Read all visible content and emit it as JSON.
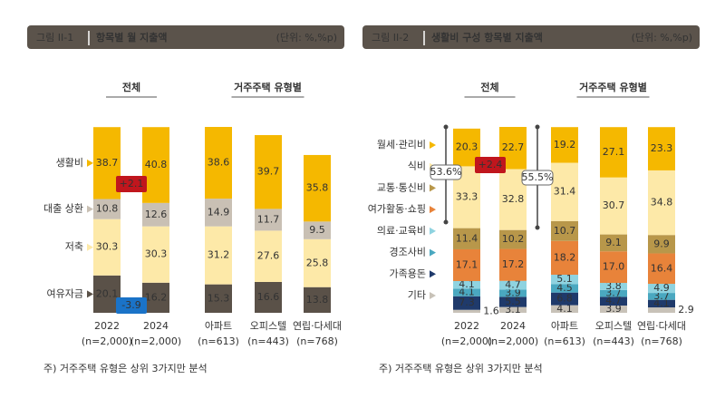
{
  "chart_data": [
    {
      "type": "stacked-bar",
      "figure_label": "그림 II-1",
      "title": "항목별 월 지출액",
      "unit": "(단위: %,%p)",
      "groups": [
        "전체",
        "거주주택 유형별"
      ],
      "categories": [
        "2022",
        "2024",
        "아파트",
        "오피스텔",
        "연립·다세대"
      ],
      "category_notes": [
        "(n=2,000)",
        "(n=2,000)",
        "(n=613)",
        "(n=443)",
        "(n=768)"
      ],
      "series": [
        {
          "name": "여유자금",
          "color": "#5a5148",
          "values": [
            20.1,
            16.2,
            15.3,
            16.6,
            13.8
          ]
        },
        {
          "name": "저축",
          "color": "#fde9a8",
          "values": [
            30.3,
            30.3,
            31.2,
            27.6,
            25.8
          ]
        },
        {
          "name": "대출 상환",
          "color": "#c9c0b4",
          "values": [
            10.8,
            12.6,
            14.9,
            11.7,
            9.5
          ]
        },
        {
          "name": "생활비",
          "color": "#f5b800",
          "values": [
            38.7,
            40.8,
            38.6,
            39.7,
            35.8
          ]
        }
      ],
      "annotations": [
        {
          "text": "+2.1",
          "color": "#c0161d"
        },
        {
          "text": "-3.9",
          "color": "#1a73c8"
        }
      ],
      "note": "주) 거주주택 유형은 상위 3가지만 분석"
    },
    {
      "type": "stacked-bar",
      "figure_label": "그림 II-2",
      "title": "생활비 구성 항목별 지출액",
      "unit": "(단위: %,%p)",
      "groups": [
        "전체",
        "거주주택 유형별"
      ],
      "categories": [
        "2022",
        "2024",
        "아파트",
        "오피스텔",
        "연립·다세대"
      ],
      "category_notes": [
        "(n=2,000)",
        "(n=2,000)",
        "(n=613)",
        "(n=443)",
        "(n=768)"
      ],
      "series": [
        {
          "name": "기타",
          "color": "#c8c2b8",
          "values": [
            1.6,
            3.1,
            4.1,
            3.9,
            2.9
          ]
        },
        {
          "name": "가족용돈",
          "color": "#1f3a6b",
          "values": [
            7.3,
            5.5,
            6.8,
            4.7,
            4.1
          ]
        },
        {
          "name": "경조사비",
          "color": "#4aa8c0",
          "values": [
            4.1,
            3.9,
            4.5,
            3.7,
            3.7
          ]
        },
        {
          "name": "의료·교육비",
          "color": "#8fd3e0",
          "values": [
            4.1,
            4.7,
            5.1,
            3.8,
            4.9
          ]
        },
        {
          "name": "여가활동·쇼핑",
          "color": "#e8833a",
          "values": [
            17.1,
            17.2,
            18.2,
            17.0,
            16.4
          ],
          "value_labels": [
            "17.1",
            "17.2",
            "18.2",
            "17.0",
            "16.4"
          ]
        },
        {
          "name": "교통·통신비",
          "color": "#b8974a",
          "values": [
            11.4,
            10.2,
            10.7,
            9.1,
            9.9
          ]
        },
        {
          "name": "식비",
          "color": "#fde9a8",
          "values": [
            33.3,
            32.8,
            31.4,
            30.7,
            34.8
          ]
        },
        {
          "name": "월세·관리비",
          "color": "#f5b800",
          "values": [
            20.3,
            22.7,
            19.2,
            27.1,
            23.3
          ]
        }
      ],
      "annotations": [
        {
          "text": "+2.4",
          "color": "#c0161d"
        },
        {
          "text": "53.6%",
          "color": "#666666"
        },
        {
          "text": "55.5%",
          "color": "#666666"
        }
      ],
      "note": "주) 거주주택 유형은 상위 3가지만 분석"
    }
  ]
}
